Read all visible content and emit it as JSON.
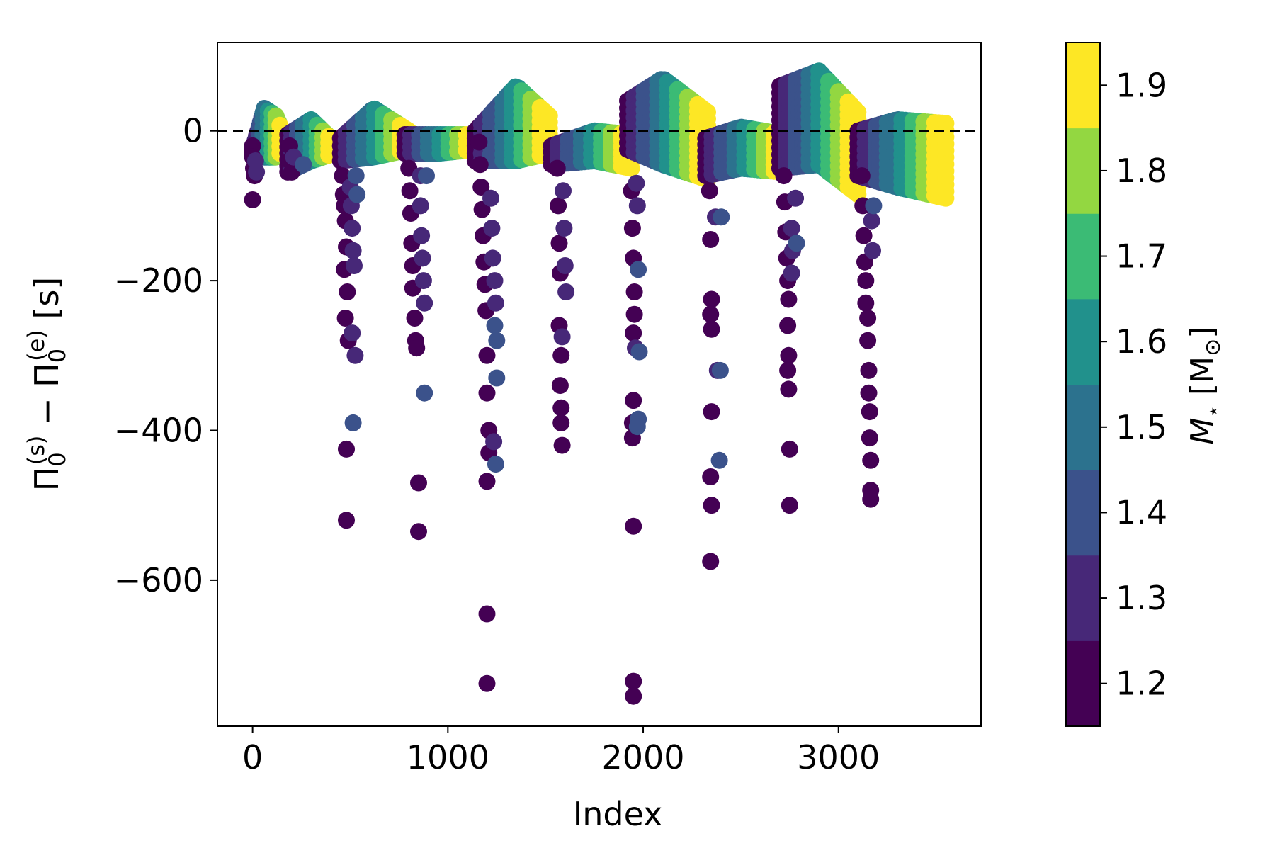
{
  "chart_data": {
    "type": "scatter",
    "title": "",
    "xlabel": "Index",
    "ylabel": "Π0(s) − Π0(e) [s]",
    "ylabel_parts": {
      "pi": "Π",
      "sub": "0",
      "sup_s": "(s)",
      "sup_e": "(e)",
      "minus": " − ",
      "unit": " [s]"
    },
    "xlim": [
      -180,
      3730
    ],
    "ylim": [
      -795,
      118
    ],
    "xticks": [
      0,
      1000,
      2000,
      3000
    ],
    "xtick_labels": [
      "0",
      "1000",
      "2000",
      "3000"
    ],
    "yticks": [
      0,
      -200,
      -400,
      -600
    ],
    "ytick_labels": [
      "0",
      "−200",
      "−400",
      "−600"
    ],
    "reference_line": {
      "y": 0,
      "style": "dashed",
      "color": "#000000"
    },
    "grid": false,
    "legend": "none",
    "colorbar": {
      "label": "M⋆ [M⊙]",
      "label_parts": {
        "symbol": "M",
        "sub": "⋆",
        "unit": " [M",
        "unit_sub": "⊙",
        "unit_close": "]"
      },
      "range": [
        1.15,
        1.95
      ],
      "ticks": [
        1.2,
        1.3,
        1.4,
        1.5,
        1.6,
        1.7,
        1.8,
        1.9
      ],
      "tick_labels": [
        "1.2",
        "1.3",
        "1.4",
        "1.5",
        "1.6",
        "1.7",
        "1.8",
        "1.9"
      ],
      "bins": [
        {
          "from": 1.15,
          "to": 1.25,
          "color": "#440154"
        },
        {
          "from": 1.25,
          "to": 1.35,
          "color": "#472878"
        },
        {
          "from": 1.35,
          "to": 1.45,
          "color": "#3b528b"
        },
        {
          "from": 1.45,
          "to": 1.55,
          "color": "#2c728e"
        },
        {
          "from": 1.55,
          "to": 1.65,
          "color": "#21918c"
        },
        {
          "from": 1.65,
          "to": 1.75,
          "color": "#3bbb75"
        },
        {
          "from": 1.75,
          "to": 1.85,
          "color": "#93d741"
        },
        {
          "from": 1.85,
          "to": 1.95,
          "color": "#fde725"
        }
      ]
    },
    "groups": [
      {
        "start": 0,
        "end": 160,
        "band": [
          [
            0,
            -25,
            -30
          ],
          [
            60,
            30,
            -35
          ],
          [
            120,
            20,
            -35
          ],
          [
            160,
            -5,
            -25
          ]
        ],
        "tail": [
          [
            0,
            -20,
            1.2
          ],
          [
            0,
            -35,
            1.2
          ],
          [
            5,
            -50,
            1.2
          ],
          [
            10,
            -60,
            1.2
          ],
          [
            0,
            -92,
            1.2
          ],
          [
            20,
            -55,
            1.3
          ],
          [
            15,
            -40,
            1.3
          ]
        ]
      },
      {
        "start": 180,
        "end": 420,
        "band": [
          [
            180,
            -5,
            -55
          ],
          [
            300,
            15,
            -40
          ],
          [
            420,
            -15,
            -30
          ]
        ],
        "tail": [
          [
            190,
            -20,
            1.2
          ],
          [
            190,
            -40,
            1.2
          ],
          [
            200,
            -55,
            1.2
          ],
          [
            210,
            -35,
            1.3
          ],
          [
            260,
            -45,
            1.4
          ]
        ]
      },
      {
        "start": 450,
        "end": 800,
        "band": [
          [
            450,
            -10,
            -40
          ],
          [
            620,
            30,
            -35
          ],
          [
            800,
            0,
            -25
          ]
        ],
        "tail": [
          [
            460,
            -60,
            1.2
          ],
          [
            465,
            -85,
            1.2
          ],
          [
            470,
            -100,
            1.2
          ],
          [
            475,
            -120,
            1.2
          ],
          [
            480,
            -155,
            1.2
          ],
          [
            470,
            -185,
            1.2
          ],
          [
            485,
            -215,
            1.2
          ],
          [
            475,
            -250,
            1.2
          ],
          [
            490,
            -280,
            1.2
          ],
          [
            480,
            -425,
            1.2
          ],
          [
            480,
            -520,
            1.2
          ],
          [
            500,
            -75,
            1.3
          ],
          [
            505,
            -100,
            1.3
          ],
          [
            510,
            -130,
            1.3
          ],
          [
            515,
            -160,
            1.3
          ],
          [
            520,
            -180,
            1.3
          ],
          [
            510,
            -270,
            1.3
          ],
          [
            525,
            -300,
            1.3
          ],
          [
            515,
            -390,
            1.4
          ],
          [
            530,
            -60,
            1.4
          ],
          [
            535,
            -85,
            1.4
          ]
        ]
      },
      {
        "start": 780,
        "end": 1140,
        "band": [
          [
            780,
            -5,
            -30
          ],
          [
            950,
            -5,
            -30
          ],
          [
            1140,
            -5,
            -25
          ]
        ],
        "tail": [
          [
            800,
            -50,
            1.2
          ],
          [
            805,
            -80,
            1.2
          ],
          [
            810,
            -110,
            1.2
          ],
          [
            815,
            -150,
            1.2
          ],
          [
            820,
            -180,
            1.2
          ],
          [
            820,
            -210,
            1.2
          ],
          [
            830,
            -250,
            1.2
          ],
          [
            835,
            -280,
            1.2
          ],
          [
            840,
            -290,
            1.2
          ],
          [
            850,
            -470,
            1.2
          ],
          [
            850,
            -535,
            1.2
          ],
          [
            860,
            -60,
            1.3
          ],
          [
            860,
            -100,
            1.3
          ],
          [
            865,
            -140,
            1.3
          ],
          [
            870,
            -170,
            1.3
          ],
          [
            875,
            -200,
            1.3
          ],
          [
            880,
            -230,
            1.3
          ],
          [
            880,
            -350,
            1.4
          ],
          [
            890,
            -60,
            1.4
          ]
        ]
      },
      {
        "start": 1140,
        "end": 1520,
        "band": [
          [
            1140,
            0,
            -40
          ],
          [
            1350,
            60,
            -40
          ],
          [
            1520,
            20,
            -30
          ]
        ],
        "tail": [
          [
            1160,
            -15,
            1.2
          ],
          [
            1165,
            -45,
            1.2
          ],
          [
            1170,
            -75,
            1.2
          ],
          [
            1175,
            -105,
            1.2
          ],
          [
            1180,
            -140,
            1.2
          ],
          [
            1185,
            -175,
            1.2
          ],
          [
            1190,
            -205,
            1.2
          ],
          [
            1195,
            -240,
            1.2
          ],
          [
            1200,
            -300,
            1.2
          ],
          [
            1200,
            -350,
            1.2
          ],
          [
            1210,
            -400,
            1.2
          ],
          [
            1210,
            -430,
            1.2
          ],
          [
            1200,
            -468,
            1.2
          ],
          [
            1200,
            -645,
            1.2
          ],
          [
            1200,
            -738,
            1.2
          ],
          [
            1220,
            -90,
            1.3
          ],
          [
            1225,
            -130,
            1.3
          ],
          [
            1230,
            -170,
            1.3
          ],
          [
            1240,
            -200,
            1.3
          ],
          [
            1245,
            -230,
            1.3
          ],
          [
            1240,
            -260,
            1.4
          ],
          [
            1250,
            -280,
            1.4
          ],
          [
            1250,
            -330,
            1.4
          ],
          [
            1245,
            -445,
            1.4
          ],
          [
            1235,
            -415,
            1.3
          ]
        ]
      },
      {
        "start": 1530,
        "end": 1940,
        "band": [
          [
            1530,
            -20,
            -45
          ],
          [
            1750,
            0,
            -40
          ],
          [
            1940,
            -5,
            -50
          ]
        ],
        "tail": [
          [
            1560,
            -50,
            1.2
          ],
          [
            1565,
            -100,
            1.2
          ],
          [
            1570,
            -150,
            1.2
          ],
          [
            1575,
            -190,
            1.2
          ],
          [
            1570,
            -260,
            1.2
          ],
          [
            1580,
            -300,
            1.2
          ],
          [
            1575,
            -340,
            1.2
          ],
          [
            1580,
            -370,
            1.2
          ],
          [
            1580,
            -390,
            1.2
          ],
          [
            1585,
            -420,
            1.2
          ],
          [
            1590,
            -80,
            1.3
          ],
          [
            1595,
            -130,
            1.3
          ],
          [
            1600,
            -180,
            1.3
          ],
          [
            1605,
            -215,
            1.3
          ],
          [
            1585,
            -275,
            1.3
          ]
        ]
      },
      {
        "start": 1920,
        "end": 2330,
        "band": [
          [
            1920,
            40,
            -25
          ],
          [
            2100,
            70,
            -45
          ],
          [
            2330,
            25,
            -65
          ]
        ],
        "tail": [
          [
            1940,
            -80,
            1.2
          ],
          [
            1945,
            -130,
            1.2
          ],
          [
            1950,
            -170,
            1.2
          ],
          [
            1955,
            -215,
            1.2
          ],
          [
            1955,
            -245,
            1.2
          ],
          [
            1950,
            -270,
            1.2
          ],
          [
            1950,
            -360,
            1.2
          ],
          [
            1945,
            -390,
            1.2
          ],
          [
            1945,
            -410,
            1.2
          ],
          [
            1950,
            -528,
            1.2
          ],
          [
            1950,
            -735,
            1.2
          ],
          [
            1950,
            -755,
            1.2
          ],
          [
            1960,
            -290,
            1.3
          ],
          [
            1965,
            -70,
            1.3
          ],
          [
            1970,
            -100,
            1.3
          ],
          [
            1975,
            -185,
            1.4
          ],
          [
            1980,
            -295,
            1.4
          ],
          [
            1975,
            -385,
            1.4
          ],
          [
            1970,
            -395,
            1.4
          ]
        ]
      },
      {
        "start": 2320,
        "end": 2720,
        "band": [
          [
            2320,
            -10,
            -60
          ],
          [
            2500,
            5,
            -50
          ],
          [
            2720,
            -5,
            -55
          ]
        ],
        "tail": [
          [
            2340,
            -80,
            1.2
          ],
          [
            2345,
            -145,
            1.2
          ],
          [
            2350,
            -225,
            1.2
          ],
          [
            2350,
            -265,
            1.2
          ],
          [
            2345,
            -245,
            1.2
          ],
          [
            2350,
            -375,
            1.2
          ],
          [
            2345,
            -462,
            1.2
          ],
          [
            2350,
            -500,
            1.2
          ],
          [
            2345,
            -575,
            1.2
          ],
          [
            2370,
            -115,
            1.3
          ],
          [
            2380,
            -320,
            1.3
          ],
          [
            2390,
            -440,
            1.4
          ],
          [
            2395,
            -320,
            1.4
          ],
          [
            2400,
            -115,
            1.4
          ]
        ]
      },
      {
        "start": 2700,
        "end": 3100,
        "band": [
          [
            2700,
            60,
            -50
          ],
          [
            2900,
            80,
            -45
          ],
          [
            3100,
            25,
            -85
          ]
        ],
        "tail": [
          [
            2720,
            -60,
            1.2
          ],
          [
            2725,
            -95,
            1.2
          ],
          [
            2730,
            -135,
            1.2
          ],
          [
            2735,
            -170,
            1.2
          ],
          [
            2740,
            -200,
            1.2
          ],
          [
            2745,
            -225,
            1.2
          ],
          [
            2740,
            -260,
            1.2
          ],
          [
            2745,
            -300,
            1.2
          ],
          [
            2740,
            -320,
            1.2
          ],
          [
            2745,
            -345,
            1.2
          ],
          [
            2750,
            -425,
            1.2
          ],
          [
            2750,
            -500,
            1.2
          ],
          [
            2760,
            -130,
            1.3
          ],
          [
            2765,
            -160,
            1.3
          ],
          [
            2760,
            -190,
            1.3
          ],
          [
            2780,
            -90,
            1.3
          ],
          [
            2785,
            -150,
            1.4
          ]
        ]
      },
      {
        "start": 3100,
        "end": 3550,
        "band": [
          [
            3100,
            0,
            -60
          ],
          [
            3300,
            15,
            -75
          ],
          [
            3550,
            10,
            -90
          ]
        ],
        "tail": [
          [
            3120,
            -60,
            1.2
          ],
          [
            3125,
            -100,
            1.2
          ],
          [
            3130,
            -140,
            1.2
          ],
          [
            3135,
            -175,
            1.2
          ],
          [
            3140,
            -200,
            1.2
          ],
          [
            3140,
            -230,
            1.2
          ],
          [
            3150,
            -250,
            1.2
          ],
          [
            3150,
            -280,
            1.2
          ],
          [
            3155,
            -320,
            1.2
          ],
          [
            3155,
            -350,
            1.2
          ],
          [
            3160,
            -375,
            1.2
          ],
          [
            3160,
            -410,
            1.2
          ],
          [
            3165,
            -440,
            1.2
          ],
          [
            3165,
            -480,
            1.2
          ],
          [
            3165,
            -492,
            1.2
          ],
          [
            3170,
            -120,
            1.3
          ],
          [
            3175,
            -160,
            1.3
          ],
          [
            3180,
            -100,
            1.4
          ]
        ]
      }
    ]
  }
}
